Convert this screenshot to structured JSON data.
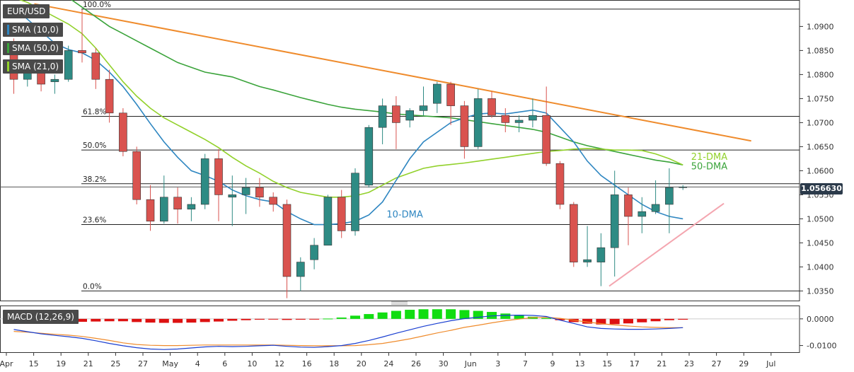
{
  "symbol": "EUR/USD",
  "legend": {
    "sma10": {
      "label": "SMA (10,0)",
      "color": "#2e86c1"
    },
    "sma50": {
      "label": "SMA (50,0)",
      "color": "#3aa33a"
    },
    "sma21": {
      "label": "SMA (21,0)",
      "color": "#92d12b"
    },
    "macd": {
      "label": "MACD (12,26,9)"
    }
  },
  "last_price": "1.056630",
  "chart_data": [
    {
      "type": "candlestick",
      "x_tick_labels": [
        "Apr",
        "15",
        "19",
        "21",
        "25",
        "27",
        "May",
        "4",
        "6",
        "10",
        "12",
        "16",
        "18",
        "20",
        "24",
        "26",
        "30",
        "Jun",
        "3",
        "7",
        "9",
        "13",
        "15",
        "17",
        "21",
        "23",
        "27",
        "29",
        "Jul"
      ],
      "y_ticks": [
        "1.0350",
        "1.0400",
        "1.0450",
        "1.0500",
        "1.0550",
        "1.0600",
        "1.0650",
        "1.0700",
        "1.0750",
        "1.0800",
        "1.0850",
        "1.0900"
      ],
      "ylim": [
        1.033,
        1.0955
      ],
      "colors": {
        "up": "#2e8b84",
        "down": "#d9534f"
      },
      "candles": [
        {
          "o": 1.0855,
          "h": 1.0875,
          "l": 1.076,
          "c": 1.079
        },
        {
          "o": 1.079,
          "h": 1.0825,
          "l": 1.0775,
          "c": 1.081
        },
        {
          "o": 1.081,
          "h": 1.083,
          "l": 1.0765,
          "c": 1.078
        },
        {
          "o": 1.0785,
          "h": 1.08,
          "l": 1.076,
          "c": 1.079
        },
        {
          "o": 1.079,
          "h": 1.086,
          "l": 1.0785,
          "c": 1.085
        },
        {
          "o": 1.085,
          "h": 1.0935,
          "l": 1.0825,
          "c": 1.0845
        },
        {
          "o": 1.0845,
          "h": 1.0855,
          "l": 1.077,
          "c": 1.079
        },
        {
          "o": 1.079,
          "h": 1.081,
          "l": 1.07,
          "c": 1.072
        },
        {
          "o": 1.072,
          "h": 1.073,
          "l": 1.063,
          "c": 1.064
        },
        {
          "o": 1.064,
          "h": 1.065,
          "l": 1.053,
          "c": 1.054
        },
        {
          "o": 1.054,
          "h": 1.057,
          "l": 1.0475,
          "c": 1.0495
        },
        {
          "o": 1.0495,
          "h": 1.059,
          "l": 1.049,
          "c": 1.0545
        },
        {
          "o": 1.0545,
          "h": 1.0565,
          "l": 1.049,
          "c": 1.052
        },
        {
          "o": 1.052,
          "h": 1.0545,
          "l": 1.0495,
          "c": 1.053
        },
        {
          "o": 1.053,
          "h": 1.0635,
          "l": 1.052,
          "c": 1.0625
        },
        {
          "o": 1.0625,
          "h": 1.0645,
          "l": 1.0495,
          "c": 1.055
        },
        {
          "o": 1.0545,
          "h": 1.059,
          "l": 1.0485,
          "c": 1.055
        },
        {
          "o": 1.055,
          "h": 1.0585,
          "l": 1.051,
          "c": 1.0565
        },
        {
          "o": 1.0565,
          "h": 1.0585,
          "l": 1.0525,
          "c": 1.0545
        },
        {
          "o": 1.0545,
          "h": 1.0555,
          "l": 1.0515,
          "c": 1.053
        },
        {
          "o": 1.053,
          "h": 1.054,
          "l": 1.0335,
          "c": 1.038
        },
        {
          "o": 1.038,
          "h": 1.042,
          "l": 1.035,
          "c": 1.041
        },
        {
          "o": 1.0415,
          "h": 1.046,
          "l": 1.0395,
          "c": 1.0445
        },
        {
          "o": 1.0445,
          "h": 1.055,
          "l": 1.0445,
          "c": 1.0545
        },
        {
          "o": 1.0545,
          "h": 1.056,
          "l": 1.046,
          "c": 1.0475
        },
        {
          "o": 1.0475,
          "h": 1.0605,
          "l": 1.0465,
          "c": 1.0595
        },
        {
          "o": 1.057,
          "h": 1.0695,
          "l": 1.0565,
          "c": 1.069
        },
        {
          "o": 1.069,
          "h": 1.075,
          "l": 1.0655,
          "c": 1.0735
        },
        {
          "o": 1.0735,
          "h": 1.0755,
          "l": 1.0645,
          "c": 1.07
        },
        {
          "o": 1.0705,
          "h": 1.073,
          "l": 1.069,
          "c": 1.0725
        },
        {
          "o": 1.0725,
          "h": 1.0775,
          "l": 1.0715,
          "c": 1.0735
        },
        {
          "o": 1.074,
          "h": 1.0785,
          "l": 1.072,
          "c": 1.078
        },
        {
          "o": 1.078,
          "h": 1.0785,
          "l": 1.0695,
          "c": 1.0735
        },
        {
          "o": 1.0735,
          "h": 1.0745,
          "l": 1.0625,
          "c": 1.065
        },
        {
          "o": 1.065,
          "h": 1.077,
          "l": 1.0645,
          "c": 1.075
        },
        {
          "o": 1.075,
          "h": 1.0765,
          "l": 1.071,
          "c": 1.0715
        },
        {
          "o": 1.0715,
          "h": 1.073,
          "l": 1.068,
          "c": 1.07
        },
        {
          "o": 1.07,
          "h": 1.0715,
          "l": 1.068,
          "c": 1.0705
        },
        {
          "o": 1.0705,
          "h": 1.075,
          "l": 1.069,
          "c": 1.0715
        },
        {
          "o": 1.0715,
          "h": 1.0775,
          "l": 1.061,
          "c": 1.0615
        },
        {
          "o": 1.0615,
          "h": 1.062,
          "l": 1.052,
          "c": 1.053
        },
        {
          "o": 1.053,
          "h": 1.0535,
          "l": 1.04,
          "c": 1.041
        },
        {
          "o": 1.041,
          "h": 1.0485,
          "l": 1.04,
          "c": 1.0415
        },
        {
          "o": 1.041,
          "h": 1.047,
          "l": 1.036,
          "c": 1.044
        },
        {
          "o": 1.044,
          "h": 1.06,
          "l": 1.038,
          "c": 1.055
        },
        {
          "o": 1.055,
          "h": 1.0565,
          "l": 1.0445,
          "c": 1.0505
        },
        {
          "o": 1.0505,
          "h": 1.0545,
          "l": 1.047,
          "c": 1.0515
        },
        {
          "o": 1.0515,
          "h": 1.058,
          "l": 1.051,
          "c": 1.053
        },
        {
          "o": 1.053,
          "h": 1.0605,
          "l": 1.047,
          "c": 1.0565
        },
        {
          "o": 1.0565,
          "h": 1.057,
          "l": 1.056,
          "c": 1.05663
        }
      ],
      "fib_levels": [
        {
          "label": "100.0%",
          "value": 1.0936
        },
        {
          "label": "61.8%",
          "value": 1.0713
        },
        {
          "label": "50.0%",
          "value": 1.0643
        },
        {
          "label": "38.2%",
          "value": 1.0573
        },
        {
          "label": "23.6%",
          "value": 1.0488
        },
        {
          "label": "0.0%",
          "value": 1.035
        }
      ],
      "last_price": 1.05663,
      "sma10": [
        1.094,
        1.0915,
        1.089,
        1.0865,
        1.0852,
        1.0845,
        1.083,
        1.0805,
        1.0775,
        1.0738,
        1.0698,
        1.066,
        1.0628,
        1.06,
        1.059,
        1.0578,
        1.056,
        1.0548,
        1.054,
        1.0535,
        1.0515,
        1.05,
        1.0488,
        1.0488,
        1.049,
        1.0495,
        1.0508,
        1.0535,
        1.058,
        1.0625,
        1.066,
        1.068,
        1.07,
        1.071,
        1.0718,
        1.072,
        1.0718,
        1.0722,
        1.0726,
        1.072,
        1.069,
        1.066,
        1.062,
        1.059,
        1.057,
        1.055,
        1.053,
        1.0515,
        1.0505,
        1.05
      ],
      "sma50": [
        1.102,
        1.101,
        1.1,
        1.098,
        1.096,
        1.094,
        1.092,
        1.09,
        1.0885,
        1.087,
        1.0855,
        1.084,
        1.0825,
        1.0815,
        1.0805,
        1.08,
        1.0795,
        1.0785,
        1.0775,
        1.0768,
        1.076,
        1.0752,
        1.0745,
        1.0738,
        1.0732,
        1.0728,
        1.0725,
        1.0722,
        1.0718,
        1.0716,
        1.0714,
        1.0712,
        1.071,
        1.0706,
        1.0702,
        1.0698,
        1.0694,
        1.069,
        1.0686,
        1.068,
        1.067,
        1.066,
        1.0652,
        1.0646,
        1.064,
        1.0634,
        1.0628,
        1.0622,
        1.0618,
        1.0612
      ],
      "sma21": [
        1.096,
        1.095,
        1.0935,
        1.092,
        1.0905,
        1.0885,
        1.0855,
        1.082,
        1.0785,
        1.0755,
        1.073,
        1.071,
        1.0695,
        1.068,
        1.0665,
        1.0648,
        1.0628,
        1.061,
        1.0595,
        1.0578,
        1.0565,
        1.0555,
        1.055,
        1.0545,
        1.0545,
        1.0548,
        1.0555,
        1.057,
        1.0585,
        1.0595,
        1.0605,
        1.061,
        1.0613,
        1.0616,
        1.062,
        1.0624,
        1.0628,
        1.0632,
        1.0636,
        1.064,
        1.0642,
        1.0645,
        1.0646,
        1.0645,
        1.0643,
        1.0643,
        1.0642,
        1.0635,
        1.0625,
        1.0612
      ],
      "trendlines": [
        {
          "name": "falling-resistance",
          "color": "#ef8b2c",
          "from": {
            "i": 1.5,
            "v": 1.0947
          },
          "to": {
            "i": 54,
            "v": 1.0662
          }
        },
        {
          "name": "rising-support",
          "color": "#f4a6b0",
          "from": {
            "i": 43.6,
            "v": 1.036
          },
          "to": {
            "i": 52,
            "v": 1.0532
          }
        }
      ],
      "annotations": [
        {
          "text": "10-DMA",
          "color": "#2e86c1",
          "i": 27.3,
          "v": 1.0503
        },
        {
          "text": "21-DMA",
          "color": "#92d12b",
          "i": 49.6,
          "v": 1.0623
        },
        {
          "text": "50-DMA",
          "color": "#3aa33a",
          "i": 49.6,
          "v": 1.0603
        }
      ]
    },
    {
      "type": "macd",
      "title": "MACD (12,26,9)",
      "y_ticks": [
        "0.0000",
        "-0.0100"
      ],
      "ylim": [
        -0.0125,
        0.005
      ],
      "colors": {
        "positive": "#11dd11",
        "negative": "#dd1111",
        "macd_line": "#1a3fd1",
        "signal_line": "#ef8b2c"
      },
      "histogram": [
        -0.0015,
        -0.0014,
        -0.0013,
        -0.0012,
        -0.0012,
        -0.0011,
        -0.001,
        -0.0009,
        -0.0009,
        -0.0012,
        -0.0014,
        -0.0015,
        -0.0015,
        -0.0014,
        -0.0012,
        -0.001,
        -0.0007,
        -0.0005,
        -0.0003,
        -0.0002,
        -0.0004,
        -0.0003,
        -0.0001,
        0.0001,
        0.0005,
        0.0012,
        0.0018,
        0.0024,
        0.003,
        0.0034,
        0.0036,
        0.0036,
        0.0036,
        0.0033,
        0.003,
        0.0026,
        0.002,
        0.0015,
        0.0008,
        0.0003,
        -0.0005,
        -0.0012,
        -0.0018,
        -0.0021,
        -0.002,
        -0.0017,
        -0.0013,
        -0.0009,
        -0.0005,
        -0.0003
      ],
      "macd_line": [
        -0.004,
        -0.0048,
        -0.0056,
        -0.0062,
        -0.0067,
        -0.0073,
        -0.0082,
        -0.0092,
        -0.0101,
        -0.0108,
        -0.0113,
        -0.0115,
        -0.0113,
        -0.0109,
        -0.0105,
        -0.0103,
        -0.0104,
        -0.0103,
        -0.0101,
        -0.0099,
        -0.0103,
        -0.0106,
        -0.0107,
        -0.0104,
        -0.01,
        -0.0092,
        -0.0081,
        -0.0068,
        -0.0054,
        -0.0041,
        -0.0028,
        -0.0017,
        -0.0007,
        0.0001,
        0.0006,
        0.0011,
        0.0013,
        0.0014,
        0.0013,
        0.0009,
        -0.0005,
        -0.0017,
        -0.003,
        -0.0036,
        -0.0038,
        -0.0039,
        -0.0039,
        -0.0038,
        -0.0036,
        -0.0033
      ],
      "signal_line": [
        -0.0047,
        -0.005,
        -0.0054,
        -0.0058,
        -0.0061,
        -0.0066,
        -0.0073,
        -0.0081,
        -0.009,
        -0.0096,
        -0.0099,
        -0.01,
        -0.01,
        -0.0099,
        -0.0098,
        -0.0098,
        -0.0098,
        -0.0098,
        -0.0098,
        -0.0098,
        -0.0099,
        -0.01,
        -0.0101,
        -0.0101,
        -0.0101,
        -0.01,
        -0.0097,
        -0.0092,
        -0.0084,
        -0.0075,
        -0.0064,
        -0.0053,
        -0.0043,
        -0.0032,
        -0.0024,
        -0.0015,
        -0.0007,
        -0.0001,
        0.0005,
        0.0006,
        0.0002,
        -0.0005,
        -0.0012,
        -0.0018,
        -0.0023,
        -0.0027,
        -0.003,
        -0.0032,
        -0.0033,
        -0.0033
      ]
    }
  ]
}
